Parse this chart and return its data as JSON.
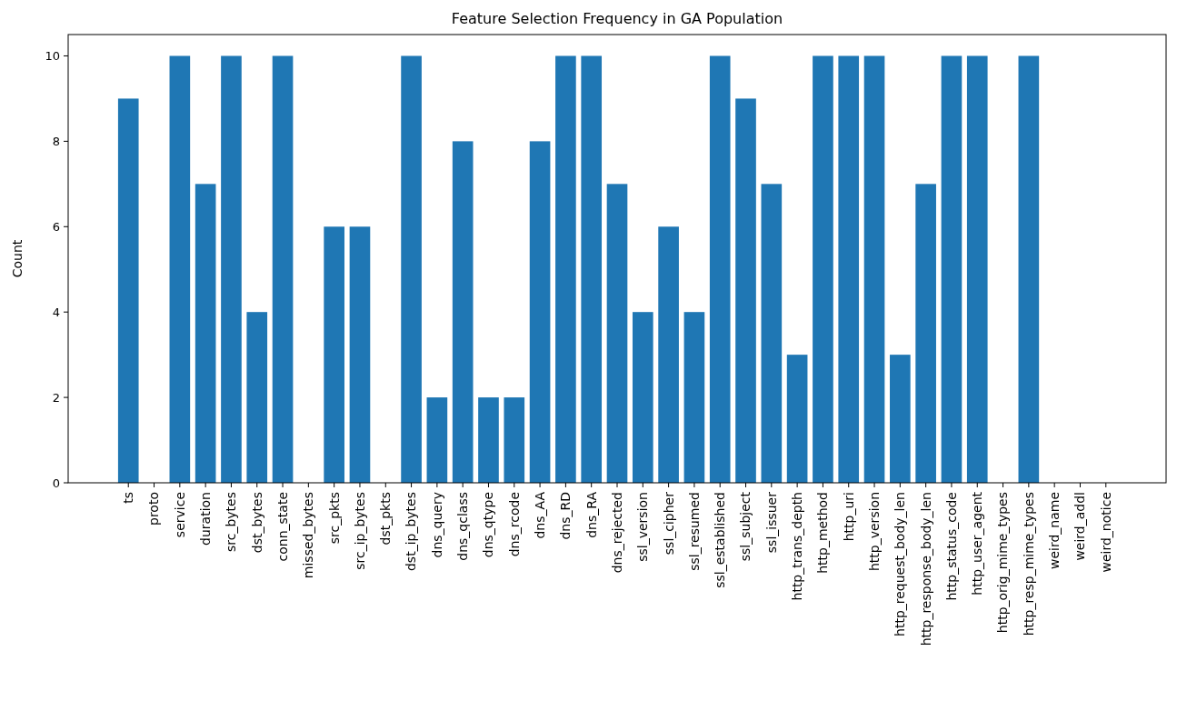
{
  "chart_data": {
    "type": "bar",
    "title": "Feature Selection Frequency in GA Population",
    "ylabel": "Count",
    "categories": [
      "ts",
      "proto",
      "service",
      "duration",
      "src_bytes",
      "dst_bytes",
      "conn_state",
      "missed_bytes",
      "src_pkts",
      "src_ip_bytes",
      "dst_pkts",
      "dst_ip_bytes",
      "dns_query",
      "dns_qclass",
      "dns_qtype",
      "dns_rcode",
      "dns_AA",
      "dns_RD",
      "dns_RA",
      "dns_rejected",
      "ssl_version",
      "ssl_cipher",
      "ssl_resumed",
      "ssl_established",
      "ssl_subject",
      "ssl_issuer",
      "http_trans_depth",
      "http_method",
      "http_uri",
      "http_version",
      "http_request_body_len",
      "http_response_body_len",
      "http_status_code",
      "http_user_agent",
      "http_orig_mime_types",
      "http_resp_mime_types",
      "weird_name",
      "weird_addl",
      "weird_notice"
    ],
    "values": [
      9,
      0,
      10,
      7,
      10,
      4,
      10,
      0,
      6,
      6,
      0,
      10,
      2,
      8,
      2,
      2,
      8,
      10,
      10,
      7,
      4,
      6,
      4,
      10,
      9,
      7,
      3,
      10,
      10,
      10,
      3,
      7,
      10,
      10,
      0,
      10,
      0,
      0,
      0
    ],
    "color": "#1f77b4",
    "ylim": [
      0,
      10.5
    ],
    "yticks": [
      0,
      2,
      4,
      6,
      8,
      10
    ],
    "grid": false
  }
}
